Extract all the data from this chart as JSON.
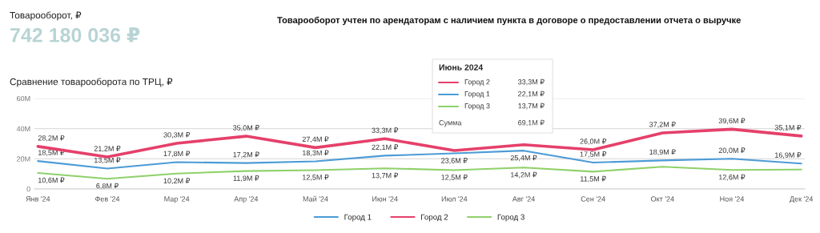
{
  "chart_data": {
    "type": "line",
    "title": "Сравнение товарооборота по ТРЦ, ₽",
    "categories": [
      "Янв '24",
      "Фев '24",
      "Мар '24",
      "Апр '24",
      "Май '24",
      "Июн '24",
      "Июл '24",
      "Авг '24",
      "Сен '24",
      "Окт '24",
      "Ноя '24",
      "Дек '24"
    ],
    "series": [
      {
        "name": "Город 1",
        "color": "#4c9bd6",
        "values": [
          18.5,
          13.5,
          17.8,
          17.2,
          18.3,
          22.1,
          23.6,
          25.4,
          17.5,
          18.9,
          20.0,
          16.9
        ],
        "value_labels": [
          "18,5M ₽",
          "13,5M ₽",
          "17,8M ₽",
          "17,2M ₽",
          "18,3M ₽",
          "22,1M ₽",
          "23,6M ₽",
          "25,4M ₽",
          "17,5M ₽",
          "18,9M ₽",
          "20,0M ₽",
          "16,9M ₽"
        ]
      },
      {
        "name": "Город 2",
        "color": "#e5406a",
        "values": [
          28.2,
          21.2,
          30.3,
          35.0,
          27.4,
          33.3,
          25.5,
          29.3,
          26.0,
          37.2,
          39.6,
          35.1
        ],
        "value_labels": [
          "28,2M ₽",
          "21,2M ₽",
          "30,3M ₽",
          "35,0M ₽",
          "27,4M ₽",
          "33,3M ₽",
          null,
          null,
          "26,0M ₽",
          "37,2M ₽",
          "39,6M ₽",
          "35,1M ₽"
        ]
      },
      {
        "name": "Город 3",
        "color": "#8fd16a",
        "values": [
          10.6,
          6.8,
          10.2,
          11.9,
          12.5,
          13.7,
          12.5,
          14.2,
          11.5,
          14.7,
          12.6,
          12.9
        ],
        "value_labels": [
          "10,6M ₽",
          "6,8M ₽",
          "10,2M ₽",
          "11,9M ₽",
          "12,5M ₽",
          "13,7M ₽",
          "12,5M ₽",
          "14,2M ₽",
          "11,5M ₽",
          null,
          "12,6M ₽",
          null
        ]
      }
    ],
    "ylim": [
      0,
      60
    ],
    "yticks": [
      0,
      {
        "value": 20,
        "label": "20M"
      },
      {
        "value": 40,
        "label": "40M"
      },
      {
        "value": 60,
        "label": "60M"
      }
    ],
    "grid": "y",
    "legend": "bottom",
    "marker": "none",
    "line_style": "solid",
    "annotations": [
      "Товарооборот, ₽",
      "742 180 036 ₽",
      "Товарооборот учтен по арендаторам с наличием пункта в договоре о предоставлении отчета о выручке",
      "Июнь 2024",
      "Город 2",
      "33,3M ₽",
      "Город 1",
      "22,1M ₽",
      "Город 3",
      "13,7M ₽",
      "Сумма",
      "69,1M ₽"
    ]
  }
}
